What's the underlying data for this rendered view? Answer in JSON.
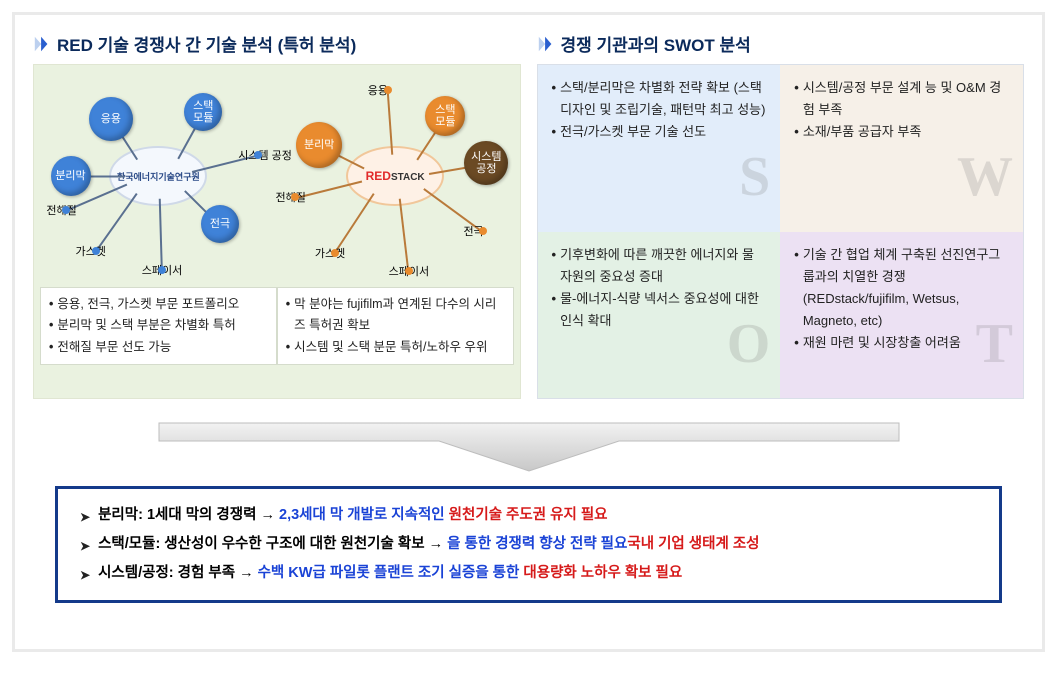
{
  "left": {
    "title": "RED 기술 경쟁사 간 기술 분석 (특허 분석)",
    "panel_bg": "#eaf2e0",
    "company1": {
      "hub_label": "한국에너지기술연구원",
      "hub_bg": "#f4f8fd",
      "hub_border": "#cfd9e8",
      "node_color": "#3f82d8",
      "line_color": "#5a7090",
      "nodes": [
        {
          "label": "응용",
          "size": 44,
          "angle": -130,
          "r": 74
        },
        {
          "label": "스택\n모듈",
          "size": 38,
          "angle": -55,
          "r": 78
        },
        {
          "label": "분리막",
          "size": 40,
          "angle": 180,
          "r": 88
        },
        {
          "label": "전극",
          "size": 38,
          "angle": 38,
          "r": 78
        },
        {
          "label": "전해질",
          "size": 0,
          "angle": 160,
          "r": 98,
          "text_only": true
        },
        {
          "label": "가스켓",
          "size": 0,
          "angle": 130,
          "r": 98,
          "text_only": true
        },
        {
          "label": "스페이서",
          "size": 0,
          "angle": 88,
          "r": 94,
          "text_only": true
        },
        {
          "label": "시스템\n공정",
          "size": 0,
          "angle": -12,
          "r": 102,
          "text_only": true
        }
      ],
      "bullets": [
        "응용, 전극, 가스켓 부문 포트폴리오",
        "분리막 및 스택 부분은 차별화 특허",
        "전해질 부문 선도 가능"
      ]
    },
    "company2": {
      "hub_label_red": "RED",
      "hub_label_stack": "STACK",
      "hub_bg": "#fef1e6",
      "hub_border": "#f1c79a",
      "node_color": "#e98b2e",
      "line_color": "#b97a3a",
      "nodes": [
        {
          "label": "응용",
          "size": 0,
          "angle": -95,
          "r": 86,
          "text_only": true
        },
        {
          "label": "스택\n모듈",
          "size": 40,
          "angle": -50,
          "r": 78
        },
        {
          "label": "분리막",
          "size": 46,
          "angle": -158,
          "r": 82
        },
        {
          "label": "시스템\n공정",
          "size": 44,
          "angle": -8,
          "r": 92,
          "dark": true
        },
        {
          "label": "전극",
          "size": 0,
          "angle": 32,
          "r": 104,
          "text_only": true
        },
        {
          "label": "전해질",
          "size": 0,
          "angle": 168,
          "r": 102,
          "text_only": true
        },
        {
          "label": "가스켓",
          "size": 0,
          "angle": 128,
          "r": 98,
          "text_only": true
        },
        {
          "label": "스페이서",
          "size": 0,
          "angle": 82,
          "r": 96,
          "text_only": true
        }
      ],
      "bullets": [
        "막 분야는 fujifilm과 연계된 다수의 시리즈 특허권 확보",
        "시스템 및 스택 분문 특허/노하우 우위"
      ]
    }
  },
  "right": {
    "title": "경쟁 기관과의 SWOT 분석",
    "quadrants": {
      "S": {
        "bg": "#e2edfa",
        "letter": "S",
        "items": [
          "스택/분리막은 차별화 전략 확보 (스택 디자인 및 조립기술, 패턴막 최고 성능)",
          "전극/가스켓 부문 기술 선도"
        ]
      },
      "W": {
        "bg": "#f6f0e8",
        "letter": "W",
        "items": [
          "시스템/공정 부문 설계 능 및 O&M 경험 부족",
          "소재/부품 공급자 부족"
        ]
      },
      "O": {
        "bg": "#e3f1e5",
        "letter": "O",
        "items": [
          "기후변화에 따른 깨끗한 에너지와 물 자원의 중요성 증대",
          "물-에너지-식량 넥서스 중요성에 대한 인식 확대"
        ]
      },
      "T": {
        "bg": "#ece1f3",
        "letter": "T",
        "items": [
          "기술 간 협업 체계 구축된 선진연구그룹과의 치열한 경쟁 (REDstack/fujifilm, Wetsus, Magneto, etc)",
          "재원 마련 및 시장창출 어려움"
        ]
      }
    }
  },
  "conclusion": {
    "border": "#143a8a",
    "lines": [
      {
        "k": "분리막: 1세대 막의 경쟁력 → ",
        "b": "2,3세대 막 개발로 지속적인 ",
        "r": "원천기술 주도권 유지 필요"
      },
      {
        "k": "스택/모듈: 생산성이 우수한 구조에 대한 원천기술 확보 → ",
        "r": "국내 기업 생태계 조성",
        "b": "을 통한 경쟁력 향상 전략 필요"
      },
      {
        "k": "시스템/공정: 경험 부족 → ",
        "b": "수백 KW급 파일롯 플랜트 조기 실증을 통한 ",
        "r": "대용량화 노하우 확보 필요"
      }
    ]
  },
  "colors": {
    "title": "#0b2a5b",
    "chev_a": "#bcd0ef",
    "chev_b": "#2a5fcf",
    "blue": "#1a43d6",
    "red": "#d61a1a"
  }
}
